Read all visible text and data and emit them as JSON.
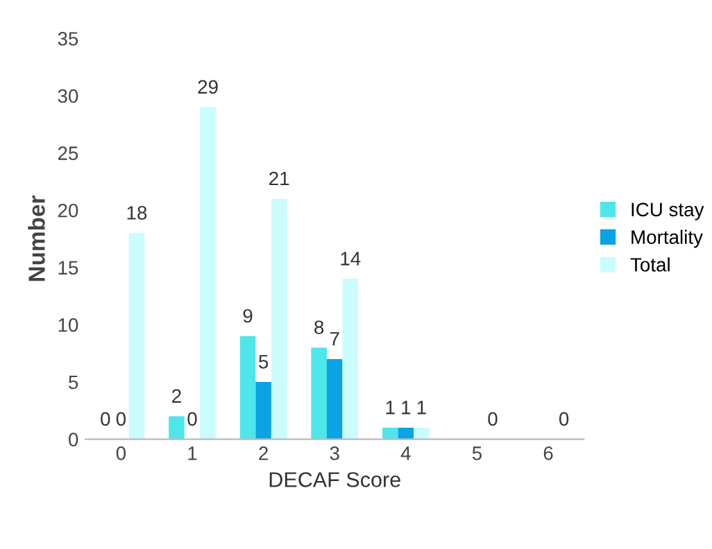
{
  "chart_data": {
    "type": "bar",
    "xlabel": "DECAF Score",
    "ylabel": "Number",
    "categories": [
      "0",
      "1",
      "2",
      "3",
      "4",
      "5",
      "6"
    ],
    "series": [
      {
        "name": "ICU stay",
        "color": "#4ee6ea",
        "values": [
          0,
          2,
          9,
          8,
          1,
          null,
          null
        ]
      },
      {
        "name": "Mortality",
        "color": "#0ba3e3",
        "values": [
          0,
          0,
          5,
          7,
          1,
          null,
          null
        ]
      },
      {
        "name": "Total",
        "color": "#cafcfc",
        "values": [
          18,
          29,
          21,
          14,
          1,
          0,
          0
        ]
      }
    ],
    "ylim": [
      0,
      35
    ],
    "yticks": [
      0,
      5,
      10,
      15,
      20,
      25,
      30,
      35
    ],
    "grid": false,
    "legend": "right",
    "data_labels": true
  }
}
